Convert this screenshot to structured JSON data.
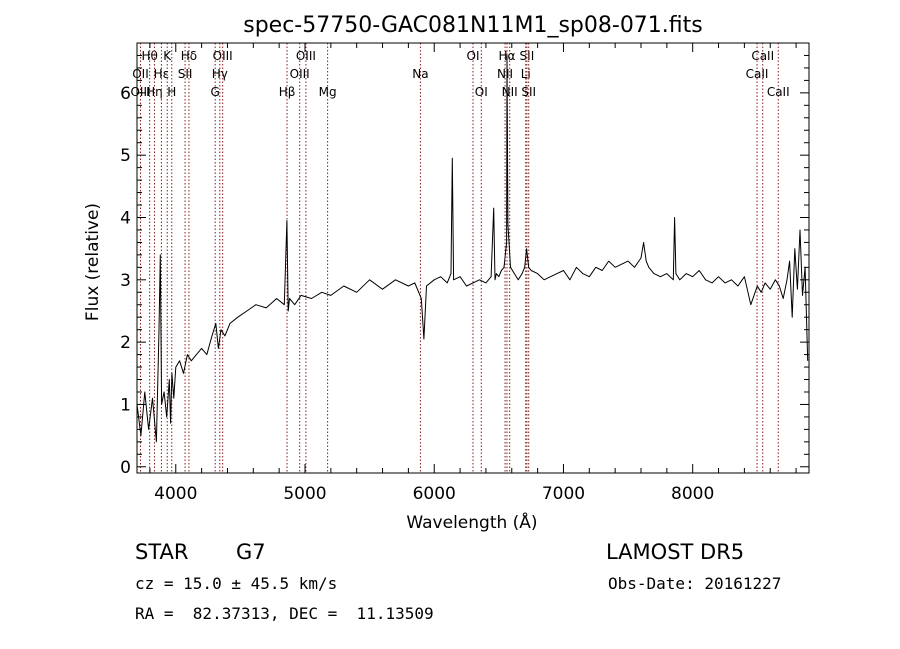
{
  "chart_data": {
    "type": "line",
    "title": "spec-57750-GAC081N11M1_sp08-071.fits",
    "xlabel": "Wavelength (Å)",
    "ylabel": "Flux (relative)",
    "xlim": [
      3700,
      8900
    ],
    "ylim": [
      -0.1,
      6.8
    ],
    "xticks": [
      4000,
      5000,
      6000,
      7000,
      8000
    ],
    "yticks": [
      0,
      1,
      2,
      3,
      4,
      5,
      6
    ],
    "grid": false,
    "series": [
      {
        "x": [
          3700,
          3730,
          3760,
          3790,
          3820,
          3850,
          3860,
          3870,
          3880,
          3890,
          3910,
          3930,
          3950,
          3960,
          3970,
          3985,
          4000,
          4030,
          4060,
          4090,
          4120,
          4160,
          4200,
          4240,
          4280,
          4310,
          4330,
          4350,
          4380,
          4420,
          4480,
          4550,
          4620,
          4700,
          4780,
          4840,
          4860,
          4870,
          4880,
          4920,
          4970,
          5050,
          5130,
          5200,
          5300,
          5400,
          5500,
          5600,
          5700,
          5800,
          5850,
          5900,
          5920,
          5940,
          6000,
          6050,
          6100,
          6130,
          6140,
          6150,
          6200,
          6250,
          6300,
          6350,
          6400,
          6440,
          6460,
          6470,
          6480,
          6500,
          6520,
          6540,
          6560,
          6563,
          6570,
          6590,
          6620,
          6650,
          6680,
          6700,
          6715,
          6731,
          6750,
          6800,
          6850,
          6900,
          6950,
          7000,
          7050,
          7100,
          7150,
          7200,
          7250,
          7300,
          7350,
          7400,
          7450,
          7500,
          7550,
          7600,
          7620,
          7640,
          7660,
          7700,
          7750,
          7800,
          7850,
          7860,
          7870,
          7900,
          7950,
          8000,
          8050,
          8100,
          8150,
          8200,
          8250,
          8300,
          8350,
          8400,
          8450,
          8500,
          8530,
          8560,
          8600,
          8640,
          8670,
          8700,
          8730,
          8750,
          8770,
          8790,
          8810,
          8830,
          8850,
          8870,
          8890
        ],
        "y": [
          1.0,
          0.5,
          1.2,
          0.6,
          1.1,
          0.4,
          1.3,
          2.2,
          3.4,
          1.0,
          1.2,
          0.8,
          1.4,
          0.7,
          1.5,
          1.1,
          1.6,
          1.7,
          1.5,
          1.8,
          1.7,
          1.8,
          1.9,
          1.8,
          2.1,
          2.3,
          1.9,
          2.2,
          2.1,
          2.3,
          2.4,
          2.5,
          2.6,
          2.55,
          2.7,
          2.6,
          3.95,
          2.5,
          2.7,
          2.6,
          2.75,
          2.7,
          2.8,
          2.75,
          2.9,
          2.8,
          3.0,
          2.85,
          3.0,
          2.9,
          2.95,
          2.7,
          2.05,
          2.9,
          3.0,
          3.05,
          2.95,
          3.1,
          4.95,
          3.0,
          3.05,
          2.9,
          2.95,
          3.0,
          2.95,
          3.05,
          4.15,
          3.0,
          3.1,
          3.05,
          3.15,
          3.2,
          3.6,
          6.6,
          3.9,
          3.2,
          3.1,
          3.0,
          3.1,
          3.2,
          3.5,
          3.2,
          3.15,
          3.1,
          3.0,
          3.05,
          3.1,
          3.15,
          3.0,
          3.2,
          3.1,
          3.05,
          3.2,
          3.15,
          3.3,
          3.2,
          3.25,
          3.3,
          3.2,
          3.35,
          3.6,
          3.3,
          3.2,
          3.1,
          3.05,
          3.1,
          3.0,
          4.0,
          3.1,
          3.0,
          3.1,
          3.05,
          3.15,
          3.0,
          2.95,
          3.05,
          2.95,
          3.0,
          2.9,
          3.05,
          2.6,
          2.9,
          2.8,
          2.95,
          2.85,
          3.0,
          2.9,
          2.7,
          3.0,
          3.3,
          2.4,
          3.5,
          2.85,
          3.8,
          2.75,
          3.2,
          1.7
        ]
      }
    ],
    "lines": [
      {
        "label": "Hθ",
        "x": 3798,
        "row": 0
      },
      {
        "label": "OII",
        "x": 3727,
        "row": 1
      },
      {
        "label": "OIII",
        "x": 3727,
        "row": 2
      },
      {
        "label": "Hη",
        "x": 3835,
        "row": 2
      },
      {
        "label": "K",
        "x": 3934,
        "row": 0
      },
      {
        "label": "Hε",
        "x": 3889,
        "row": 1
      },
      {
        "label": "H",
        "x": 3969,
        "row": 2
      },
      {
        "label": "Hδ",
        "x": 4102,
        "row": 0
      },
      {
        "label": "SII",
        "x": 4072,
        "row": 1
      },
      {
        "label": "OIII",
        "x": 4363,
        "row": 0
      },
      {
        "label": "Hγ",
        "x": 4341,
        "row": 1
      },
      {
        "label": "G",
        "x": 4305,
        "row": 2
      },
      {
        "label": "OIII",
        "x": 5007,
        "row": 0
      },
      {
        "label": "OIII",
        "x": 4959,
        "row": 1
      },
      {
        "label": "Hβ",
        "x": 4861,
        "row": 2
      },
      {
        "label": "Mg",
        "x": 5175,
        "row": 2
      },
      {
        "label": "Na",
        "x": 5893,
        "row": 1
      },
      {
        "label": "OI",
        "x": 6300,
        "row": 0
      },
      {
        "label": "OI",
        "x": 6364,
        "row": 2
      },
      {
        "label": "Hα",
        "x": 6563,
        "row": 0
      },
      {
        "label": "NII",
        "x": 6548,
        "row": 1
      },
      {
        "label": "NII",
        "x": 6584,
        "row": 2
      },
      {
        "label": "SII",
        "x": 6717,
        "row": 0
      },
      {
        "label": "Li",
        "x": 6708,
        "row": 1
      },
      {
        "label": "SII",
        "x": 6731,
        "row": 2
      },
      {
        "label": "CaII",
        "x": 8542,
        "row": 0
      },
      {
        "label": "CaII",
        "x": 8498,
        "row": 1
      },
      {
        "label": "CaII",
        "x": 8662,
        "row": 2
      }
    ],
    "line_color": "#8b1a1a",
    "spectrum_color": "#000000"
  },
  "info": {
    "object_class": "STAR",
    "subclass": "G7",
    "survey": "LAMOST DR5",
    "redshift": "cz = 15.0 ± 45.5 km/s",
    "obs_date": "Obs-Date: 20161227",
    "coords": "RA =  82.37313, DEC =  11.13509"
  }
}
